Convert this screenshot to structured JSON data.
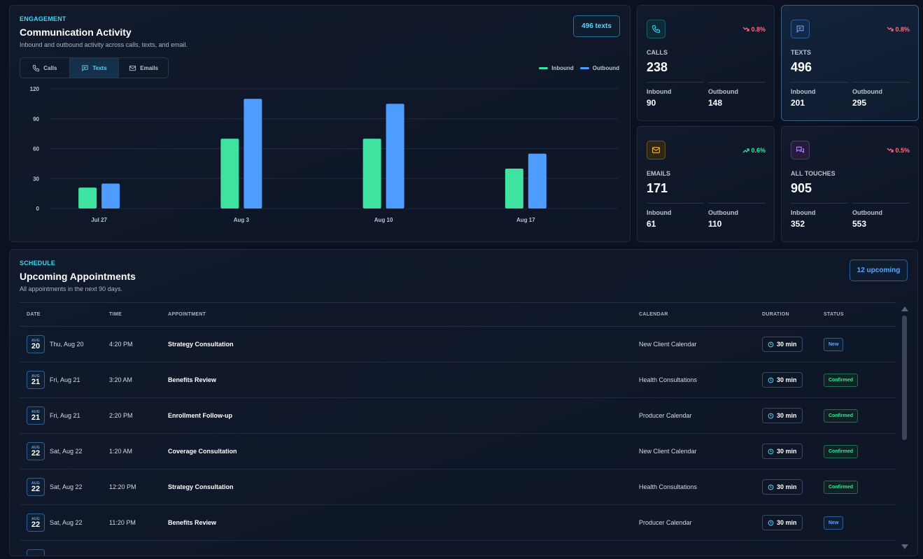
{
  "engagement": {
    "eyebrow": "ENGAGEMENT",
    "title": "Communication Activity",
    "subtitle": "Inbound and outbound activity across calls, texts, and email.",
    "pill": "496 texts",
    "tabs": [
      {
        "label": "Calls",
        "icon": "phone-icon",
        "active": false
      },
      {
        "label": "Texts",
        "icon": "message-icon",
        "active": true
      },
      {
        "label": "Emails",
        "icon": "mail-icon",
        "active": false
      }
    ],
    "legend": [
      "Inbound",
      "Outbound"
    ],
    "colors": {
      "inbound": "#3ee3a0",
      "outbound": "#4f9cff"
    }
  },
  "chart_data": {
    "type": "bar",
    "categories": [
      "Jul 27",
      "Aug 3",
      "Aug 10",
      "Aug 17"
    ],
    "series": [
      {
        "name": "Inbound",
        "values": [
          21,
          70,
          70,
          40
        ]
      },
      {
        "name": "Outbound",
        "values": [
          25,
          110,
          105,
          55
        ]
      }
    ],
    "yticks": [
      0,
      30,
      60,
      90,
      120
    ],
    "ylim": [
      0,
      120
    ],
    "grid": true,
    "legend_position": "top-right"
  },
  "cards": [
    {
      "id": "calls",
      "label": "CALLS",
      "value": "238",
      "trend": "0.8%",
      "trend_dir": "down",
      "icon": "phone-icon",
      "inbound_label": "Inbound",
      "inbound": "90",
      "outbound_label": "Outbound",
      "outbound": "148",
      "accent": "#38d8f0"
    },
    {
      "id": "texts",
      "label": "TEXTS",
      "value": "496",
      "trend": "0.8%",
      "trend_dir": "down",
      "icon": "message-icon",
      "inbound_label": "Inbound",
      "inbound": "201",
      "outbound_label": "Outbound",
      "outbound": "295",
      "accent": "#5aa6ff"
    },
    {
      "id": "emails",
      "label": "EMAILS",
      "value": "171",
      "trend": "0.6%",
      "trend_dir": "up",
      "icon": "mail-icon",
      "inbound_label": "Inbound",
      "inbound": "61",
      "outbound_label": "Outbound",
      "outbound": "110",
      "accent": "#f0b44c"
    },
    {
      "id": "touches",
      "label": "ALL TOUCHES",
      "value": "905",
      "trend": "0.5%",
      "trend_dir": "down",
      "icon": "chat-icon",
      "inbound_label": "Inbound",
      "inbound": "352",
      "outbound_label": "Outbound",
      "outbound": "553",
      "accent": "#b58cf5"
    }
  ],
  "schedule": {
    "eyebrow": "SCHEDULE",
    "title": "Upcoming Appointments",
    "subtitle": "All appointments in the next 90 days.",
    "pill": "12 upcoming",
    "columns": [
      "DATE",
      "TIME",
      "APPOINTMENT",
      "CALENDAR",
      "DURATION",
      "STATUS"
    ],
    "rows": [
      {
        "month": "AUG",
        "day": "20",
        "date": "Thu, Aug 20",
        "time": "4:20 PM",
        "appointment": "Strategy Consultation",
        "calendar": "New Client Calendar",
        "duration": "30 min",
        "status": "New"
      },
      {
        "month": "AUG",
        "day": "21",
        "date": "Fri, Aug 21",
        "time": "3:20 AM",
        "appointment": "Benefits Review",
        "calendar": "Health Consultations",
        "duration": "30 min",
        "status": "Confirmed"
      },
      {
        "month": "AUG",
        "day": "21",
        "date": "Fri, Aug 21",
        "time": "2:20 PM",
        "appointment": "Enrollment Follow-up",
        "calendar": "Producer Calendar",
        "duration": "30 min",
        "status": "Confirmed"
      },
      {
        "month": "AUG",
        "day": "22",
        "date": "Sat, Aug 22",
        "time": "1:20 AM",
        "appointment": "Coverage Consultation",
        "calendar": "New Client Calendar",
        "duration": "30 min",
        "status": "Confirmed"
      },
      {
        "month": "AUG",
        "day": "22",
        "date": "Sat, Aug 22",
        "time": "12:20 PM",
        "appointment": "Strategy Consultation",
        "calendar": "Health Consultations",
        "duration": "30 min",
        "status": "Confirmed"
      },
      {
        "month": "AUG",
        "day": "22",
        "date": "Sat, Aug 22",
        "time": "11:20 PM",
        "appointment": "Benefits Review",
        "calendar": "Producer Calendar",
        "duration": "30 min",
        "status": "New"
      }
    ]
  }
}
